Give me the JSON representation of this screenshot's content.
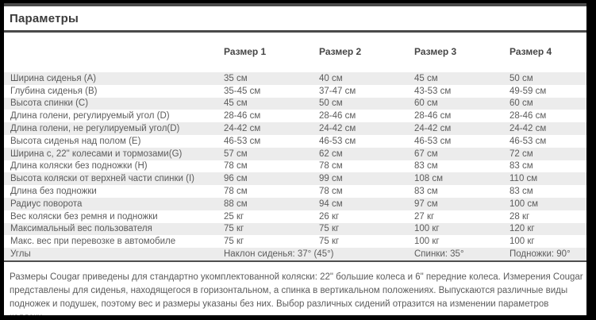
{
  "page": {
    "title": "Параметры"
  },
  "table": {
    "column_headers": [
      "Размер 1",
      "Размер 2",
      "Размер 3",
      "Размер 4"
    ],
    "rows": [
      {
        "label": "Ширина сиденья (A)",
        "values": [
          "35 см",
          "40 см",
          "45 см",
          "50 см"
        ]
      },
      {
        "label": "Глубина сиденья (B)",
        "values": [
          "35-45 см",
          "37-47 см",
          "43-53 см",
          "49-59 см"
        ]
      },
      {
        "label": "Высота спинки (C)",
        "values": [
          "45 см",
          "50 см",
          "60 см",
          "60 см"
        ]
      },
      {
        "label": "Длина голени, регулируемый угол (D)",
        "values": [
          "28-46 см",
          "28-46 см",
          "28-46 см",
          "28-46 см"
        ]
      },
      {
        "label": "Длина голени, не регулируемый угол(D)",
        "values": [
          "24-42 см",
          "24-42 см",
          "24-42 см",
          "24-42 см"
        ]
      },
      {
        "label": "Высота сиденья над полом (E)",
        "values": [
          "46-53 см",
          "46-53 см",
          "46-53 см",
          "46-53 см"
        ]
      },
      {
        "label": "Ширина с, 22\" колесами и тормозами(G)",
        "values": [
          "57 см",
          "62 см",
          "67 см",
          "72 см"
        ]
      },
      {
        "label": "Длина коляски без подножки (H)",
        "values": [
          "78 см",
          "78 см",
          "83 см",
          "83 см"
        ]
      },
      {
        "label": "Высота коляски от верхней части спинки (I)",
        "values": [
          "96 см",
          "99 см",
          "108 см",
          "110 см"
        ]
      },
      {
        "label": "Длина без подножки",
        "values": [
          "78 см",
          "78 см",
          "83 см",
          "83 см"
        ]
      },
      {
        "label": "Радиус поворота",
        "values": [
          "88 см",
          "94 см",
          "97 см",
          "100 см"
        ]
      },
      {
        "label": "Вес коляски без ремня и подножки",
        "values": [
          "25 кг",
          "26 кг",
          "27 кг",
          "28 кг"
        ]
      },
      {
        "label": "Максимальный вес пользователя",
        "values": [
          "75 кг",
          "75 кг",
          "100 кг",
          "120 кг"
        ]
      },
      {
        "label": "Макс. вес при перевозке в автомобиле",
        "values": [
          "75 кг",
          "75 кг",
          "100 кг",
          "100 кг"
        ]
      }
    ],
    "angles_row": {
      "label": "Углы",
      "seat": "Наклон сиденья: 37° (45°)",
      "back": "Спинки: 35°",
      "footrest": "Подножки: 90°"
    }
  },
  "footnote": "Размеры Cougar приведены для стандартно укомплектованной коляски: 22\" большие колеса и 6\" передние колеса. Измерения Cougar представлены для сиденья, находящегося в горизонтальном, а спинка в вертикальном положениях. Выпускаются различные виды подножек и подушек, поэтому вес и размеры указаны без них. Выбор различных сидений отразится на изменении параметров коляски."
}
